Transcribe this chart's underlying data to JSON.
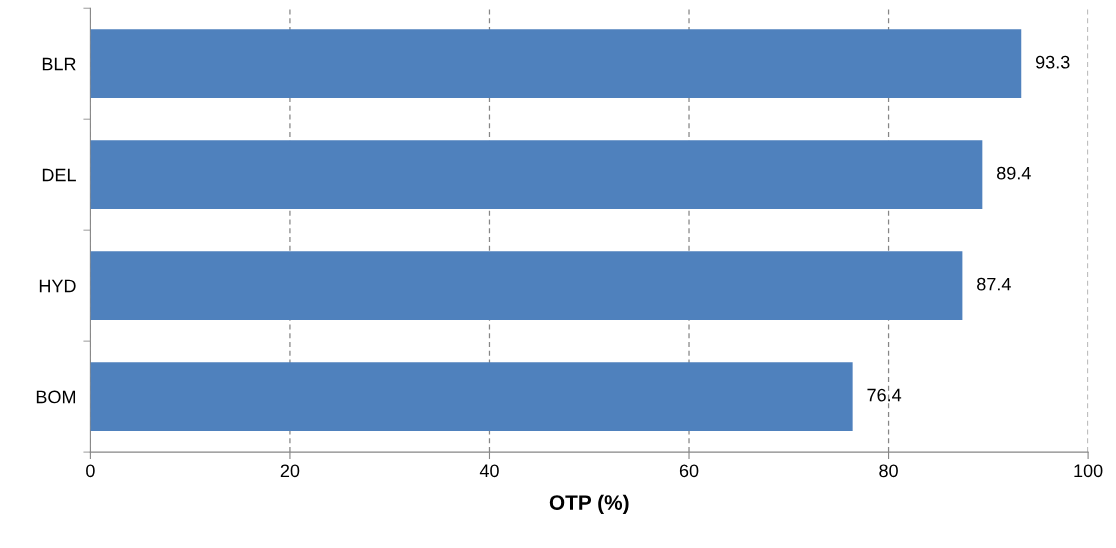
{
  "chart_data": {
    "type": "bar",
    "orientation": "horizontal",
    "xlabel": "OTP (%)",
    "categories": [
      "BLR",
      "DEL",
      "HYD",
      "BOM"
    ],
    "values": [
      93.3,
      89.4,
      87.4,
      76.4
    ],
    "color": "#4f81bd",
    "xlim": [
      0,
      100
    ],
    "xticks": [
      0,
      20,
      40,
      60,
      80,
      100
    ],
    "grid": "x",
    "data_labels": true
  }
}
